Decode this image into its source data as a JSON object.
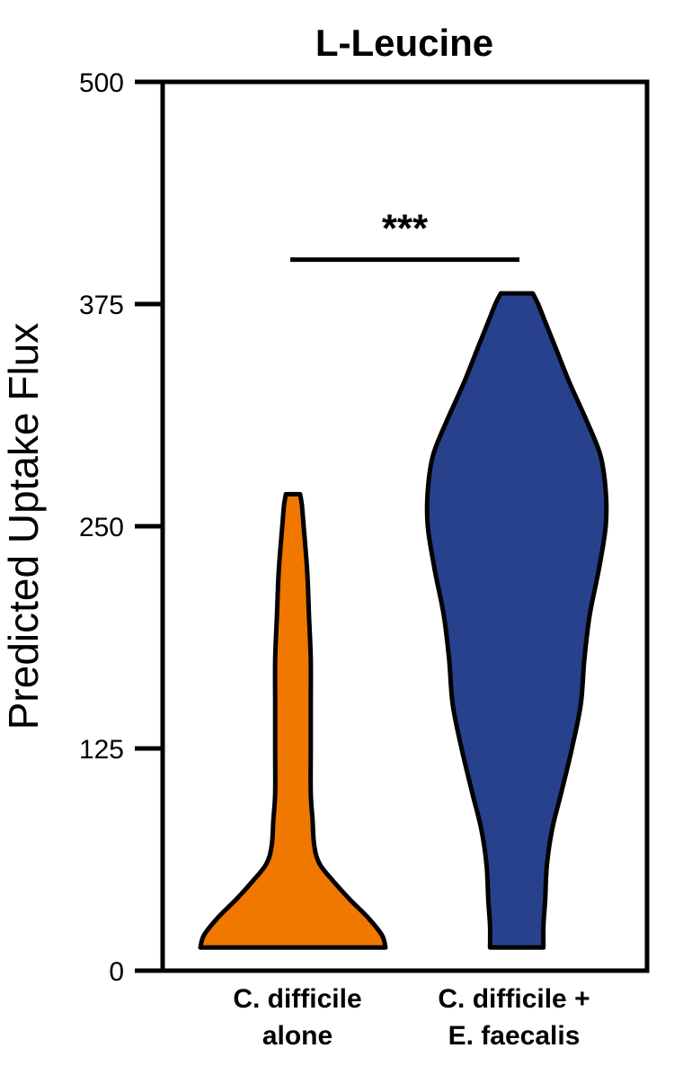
{
  "chart_data": {
    "type": "violin",
    "title": "L-Leucine",
    "xlabel": "",
    "ylabel": "Predicted Uptake Flux",
    "ylim": [
      0,
      500
    ],
    "yticks": [
      0,
      125,
      250,
      375,
      500
    ],
    "ytick_labels": [
      "0",
      "125",
      "250",
      "375",
      "500"
    ],
    "grid": false,
    "categories": [
      {
        "lines": [
          "C. difficile",
          "alone"
        ]
      },
      {
        "lines": [
          "C. difficile +",
          "E. faecalis"
        ]
      }
    ],
    "series": [
      {
        "color": "#f07700",
        "min": 13,
        "max": 268,
        "profile": [
          {
            "y": 13,
            "hw": 0.52
          },
          {
            "y": 20,
            "hw": 0.5
          },
          {
            "y": 30,
            "hw": 0.42
          },
          {
            "y": 40,
            "hw": 0.32
          },
          {
            "y": 50,
            "hw": 0.23
          },
          {
            "y": 60,
            "hw": 0.15
          },
          {
            "y": 70,
            "hw": 0.12
          },
          {
            "y": 85,
            "hw": 0.11
          },
          {
            "y": 100,
            "hw": 0.1
          },
          {
            "y": 125,
            "hw": 0.1
          },
          {
            "y": 150,
            "hw": 0.1
          },
          {
            "y": 175,
            "hw": 0.1
          },
          {
            "y": 200,
            "hw": 0.09
          },
          {
            "y": 225,
            "hw": 0.08
          },
          {
            "y": 250,
            "hw": 0.06
          },
          {
            "y": 262,
            "hw": 0.05
          },
          {
            "y": 268,
            "hw": 0.04
          }
        ]
      },
      {
        "color": "#27418c",
        "min": 13,
        "max": 381,
        "profile": [
          {
            "y": 13,
            "hw": 0.15
          },
          {
            "y": 25,
            "hw": 0.15
          },
          {
            "y": 40,
            "hw": 0.16
          },
          {
            "y": 60,
            "hw": 0.17
          },
          {
            "y": 80,
            "hw": 0.2
          },
          {
            "y": 100,
            "hw": 0.25
          },
          {
            "y": 125,
            "hw": 0.31
          },
          {
            "y": 150,
            "hw": 0.36
          },
          {
            "y": 175,
            "hw": 0.38
          },
          {
            "y": 200,
            "hw": 0.41
          },
          {
            "y": 225,
            "hw": 0.46
          },
          {
            "y": 250,
            "hw": 0.5
          },
          {
            "y": 270,
            "hw": 0.5
          },
          {
            "y": 290,
            "hw": 0.47
          },
          {
            "y": 310,
            "hw": 0.39
          },
          {
            "y": 330,
            "hw": 0.3
          },
          {
            "y": 350,
            "hw": 0.22
          },
          {
            "y": 365,
            "hw": 0.16
          },
          {
            "y": 375,
            "hw": 0.12
          },
          {
            "y": 381,
            "hw": 0.09
          }
        ]
      }
    ],
    "annotations": [
      {
        "text": "***",
        "from_category": 0,
        "to_category": 1,
        "y": 400
      }
    ]
  }
}
